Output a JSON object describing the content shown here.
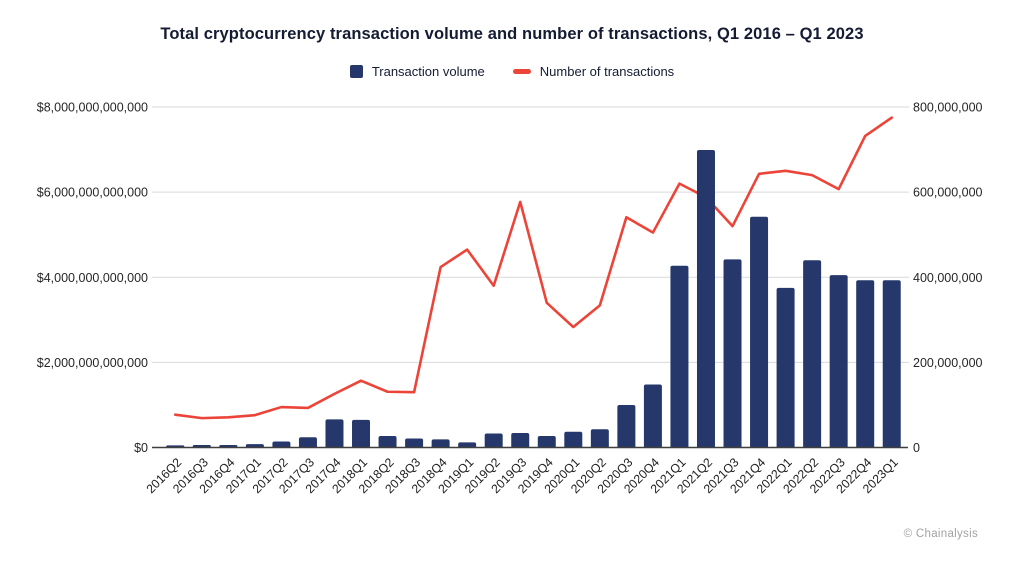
{
  "title": "Total cryptocurrency transaction volume and number of transactions, Q1 2016 – Q1 2023",
  "watermark": "© Chainalysis",
  "legend": {
    "items": [
      {
        "label": "Transaction volume",
        "marker": "square",
        "color": "#26386b"
      },
      {
        "label": "Number of transactions",
        "marker": "line",
        "color": "#ec4438"
      }
    ]
  },
  "chart_data": {
    "type": "bar+line combo",
    "title": "Total cryptocurrency transaction volume and number of transactions, Q1 2016 – Q1 2023",
    "grid": "horizontal",
    "legend_position": "top",
    "categories": [
      "2016Q2",
      "2016Q3",
      "2016Q4",
      "2017Q1",
      "2017Q2",
      "2017Q3",
      "2017Q4",
      "2018Q1",
      "2018Q2",
      "2018Q3",
      "2018Q4",
      "2019Q1",
      "2019Q2",
      "2019Q3",
      "2019Q4",
      "2020Q1",
      "2020Q2",
      "2020Q3",
      "2020Q4",
      "2021Q1",
      "2021Q2",
      "2021Q3",
      "2021Q4",
      "2022Q1",
      "2022Q2",
      "2022Q3",
      "2022Q4",
      "2023Q1"
    ],
    "series": [
      {
        "name": "Transaction volume",
        "type": "bar",
        "yaxis": "left",
        "color": "#26386b",
        "unit": "USD trillions",
        "values": [
          0.05,
          0.06,
          0.06,
          0.08,
          0.14,
          0.24,
          0.66,
          0.65,
          0.27,
          0.21,
          0.19,
          0.12,
          0.33,
          0.34,
          0.27,
          0.37,
          0.43,
          1.0,
          1.48,
          4.27,
          6.99,
          4.42,
          5.42,
          3.75,
          4.4,
          4.05,
          3.93,
          3.93
        ]
      },
      {
        "name": "Number of transactions",
        "type": "line",
        "yaxis": "right",
        "color": "#ec4438",
        "unit": "millions",
        "values": [
          77,
          69,
          71,
          76,
          95,
          93,
          126,
          157,
          131,
          130,
          424,
          465,
          380,
          577,
          340,
          283,
          334,
          541,
          505,
          620,
          588,
          520,
          643,
          650,
          640,
          607,
          732,
          775
        ]
      }
    ],
    "left_axis": {
      "range_trillions": [
        0,
        8
      ],
      "tick_labels": [
        "$0",
        "$2,000,000,000,000",
        "$4,000,000,000,000",
        "$6,000,000,000,000",
        "$8,000,000,000,000"
      ]
    },
    "right_axis": {
      "range_millions": [
        0,
        800
      ],
      "tick_labels": [
        "0",
        "200,000,000",
        "400,000,000",
        "600,000,000",
        "800,000,000"
      ]
    }
  }
}
